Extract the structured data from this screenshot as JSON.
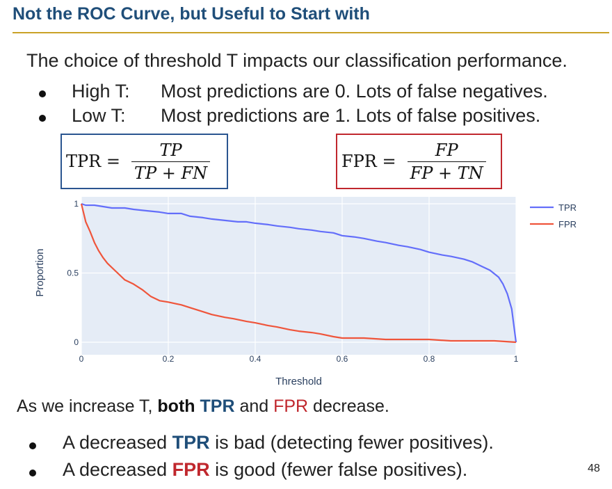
{
  "slide": {
    "title": "Not the ROC Curve, but Useful to Start with",
    "intro": "The choice of threshold T impacts our classification performance.",
    "bullets": [
      {
        "label": "High T:",
        "text": "Most predictions are 0. Lots of false negatives."
      },
      {
        "label": "Low T:",
        "text": "Most predictions are 1. Lots of false positives."
      }
    ],
    "formulas": {
      "tpr": {
        "lhs": "TPR =",
        "numerator": "TP",
        "denominator": "TP + FN"
      },
      "fpr": {
        "lhs": "FPR =",
        "numerator": "FP",
        "denominator": "FP + TN"
      }
    },
    "conclusion": {
      "pre": "As we increase T, ",
      "both": "both",
      "tpr": "TPR",
      "and": " and ",
      "fpr": "FPR",
      "post": " decrease."
    },
    "points": [
      {
        "pre": "A decreased ",
        "bold": "TPR",
        "post": " is bad (detecting fewer positives).",
        "color": "#1f4e79"
      },
      {
        "pre": "A decreased ",
        "bold": "FPR",
        "post": " is good (fewer false positives).",
        "color": "#c0272d"
      }
    ],
    "page_number": "48"
  },
  "chart_data": {
    "type": "line",
    "xlabel": "Threshold",
    "ylabel": "Proportion",
    "xlim": [
      0,
      1
    ],
    "ylim": [
      0,
      1
    ],
    "x_ticks": [
      0,
      0.2,
      0.4,
      0.6,
      0.8,
      1
    ],
    "x_tick_labels": [
      "0",
      "0.2",
      "0.4",
      "0.6",
      "0.8",
      "1"
    ],
    "y_ticks": [
      0,
      0.5,
      1
    ],
    "y_tick_labels": [
      "0",
      "0.5",
      "1"
    ],
    "grid": true,
    "legend_position": "top-right",
    "plot_background": "#e5ecf6",
    "series": [
      {
        "name": "TPR",
        "color": "#636efa",
        "x": [
          0,
          0.01,
          0.03,
          0.05,
          0.07,
          0.1,
          0.12,
          0.15,
          0.18,
          0.2,
          0.23,
          0.25,
          0.28,
          0.3,
          0.33,
          0.36,
          0.38,
          0.4,
          0.43,
          0.45,
          0.48,
          0.5,
          0.53,
          0.55,
          0.58,
          0.6,
          0.63,
          0.65,
          0.68,
          0.7,
          0.73,
          0.75,
          0.78,
          0.8,
          0.83,
          0.85,
          0.88,
          0.9,
          0.92,
          0.94,
          0.96,
          0.97,
          0.98,
          0.99,
          1.0
        ],
        "y": [
          1.0,
          0.99,
          0.99,
          0.98,
          0.97,
          0.97,
          0.96,
          0.95,
          0.94,
          0.93,
          0.93,
          0.91,
          0.9,
          0.89,
          0.88,
          0.87,
          0.87,
          0.86,
          0.85,
          0.84,
          0.83,
          0.82,
          0.81,
          0.8,
          0.79,
          0.77,
          0.76,
          0.75,
          0.73,
          0.72,
          0.7,
          0.69,
          0.67,
          0.65,
          0.63,
          0.62,
          0.6,
          0.58,
          0.55,
          0.52,
          0.47,
          0.42,
          0.35,
          0.24,
          0.0
        ]
      },
      {
        "name": "FPR",
        "color": "#ef553b",
        "x": [
          0,
          0.01,
          0.02,
          0.03,
          0.04,
          0.05,
          0.06,
          0.08,
          0.1,
          0.12,
          0.14,
          0.16,
          0.18,
          0.2,
          0.23,
          0.25,
          0.28,
          0.3,
          0.33,
          0.35,
          0.38,
          0.4,
          0.43,
          0.45,
          0.48,
          0.5,
          0.53,
          0.55,
          0.58,
          0.6,
          0.65,
          0.7,
          0.75,
          0.8,
          0.85,
          0.9,
          0.95,
          1.0
        ],
        "y": [
          1.0,
          0.87,
          0.8,
          0.72,
          0.66,
          0.61,
          0.57,
          0.51,
          0.45,
          0.42,
          0.38,
          0.33,
          0.3,
          0.29,
          0.27,
          0.25,
          0.22,
          0.2,
          0.18,
          0.17,
          0.15,
          0.14,
          0.12,
          0.11,
          0.09,
          0.08,
          0.07,
          0.06,
          0.04,
          0.03,
          0.03,
          0.02,
          0.02,
          0.02,
          0.01,
          0.01,
          0.01,
          0.0
        ]
      }
    ]
  }
}
